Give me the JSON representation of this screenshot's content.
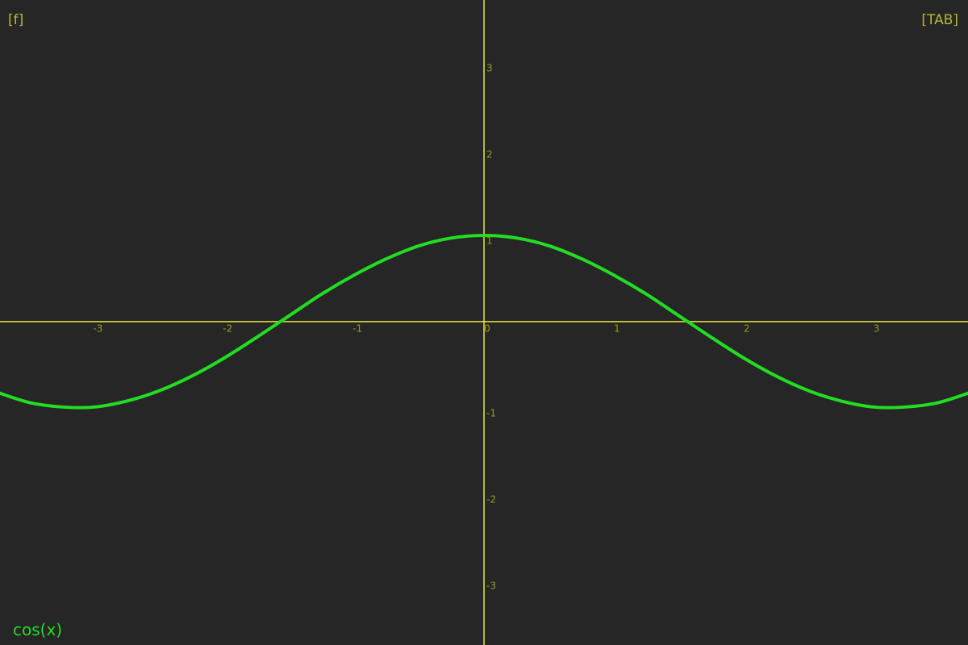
{
  "ui": {
    "left_hint": "[f]",
    "right_hint": "[TAB]"
  },
  "chart_data": {
    "type": "line",
    "x": [
      -3.75,
      -3.5,
      -3.25,
      -3,
      -2.75,
      -2.5,
      -2.25,
      -2,
      -1.75,
      -1.5,
      -1.25,
      -1,
      -0.75,
      -0.5,
      -0.25,
      0,
      0.25,
      0.5,
      0.75,
      1,
      1.25,
      1.5,
      1.75,
      2,
      2.25,
      2.5,
      2.75,
      3,
      3.25,
      3.5,
      3.75
    ],
    "series": [
      {
        "name": "cos(x)",
        "color": "#22dd22",
        "values": [
          -0.82,
          -0.94,
          -0.99,
          -0.99,
          -0.92,
          -0.8,
          -0.63,
          -0.42,
          -0.18,
          0.07,
          0.32,
          0.54,
          0.73,
          0.88,
          0.97,
          1,
          0.97,
          0.88,
          0.73,
          0.54,
          0.32,
          0.07,
          -0.18,
          -0.42,
          -0.63,
          -0.8,
          -0.92,
          -0.99,
          -0.99,
          -0.94,
          -0.82
        ]
      }
    ],
    "xlim": [
      -3.73,
      3.73
    ],
    "ylim": [
      -3.75,
      3.73
    ],
    "xticks": [
      -3,
      -2,
      -1,
      0,
      1,
      2,
      3
    ],
    "yticks": [
      -3,
      -2,
      -1,
      1,
      2,
      3
    ],
    "axis_color": "#e6e640"
  }
}
